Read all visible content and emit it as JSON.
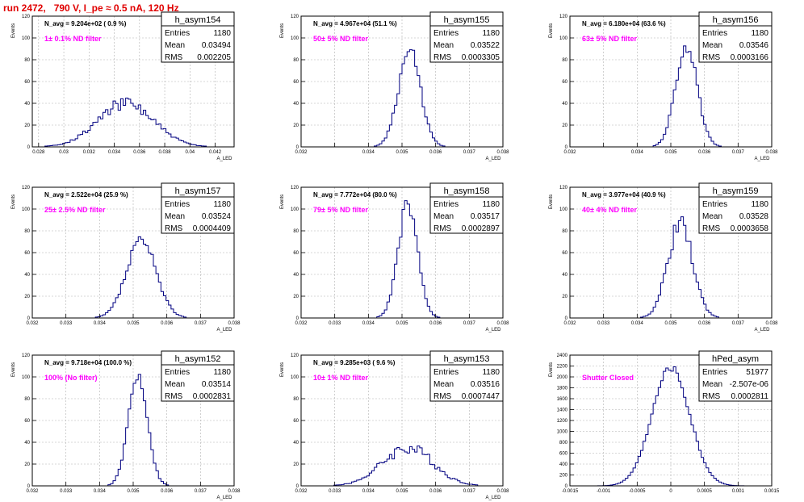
{
  "run_title": "run 2472,   790 V, I_pe ≈ 0.5 nA, 120 Hz",
  "colors": {
    "hist": "#000080",
    "annotation": "#ff00ff",
    "frame": "#000000",
    "grid": "#b0b0b0",
    "title": "#e00000"
  },
  "chart_data": [
    {
      "type": "histogram",
      "name": "h_asym154",
      "stats": {
        "Entries": "1180",
        "Mean": "0.03494",
        "RMS": "0.002205"
      },
      "navg": "N_avg = 9.204e+02 ( 0.9 %)",
      "annotation": "1± 0.1% ND filter",
      "xlim": [
        0.0275,
        0.0435
      ],
      "ylim": [
        0,
        120
      ],
      "xticks": [
        0.028,
        0.03,
        0.032,
        0.034,
        0.036,
        0.038,
        0.04,
        0.042
      ],
      "xtick_labels": [
        "0.028",
        "0.03",
        "0.032",
        "0.034",
        "0.036",
        "0.038",
        "0.04",
        "0.042"
      ],
      "yticks": [
        0,
        20,
        40,
        60,
        80,
        100,
        120
      ],
      "ytick_labels": [
        "0",
        "20",
        "40",
        "60",
        "80",
        "100",
        "120"
      ],
      "ylabel": "Events",
      "xlabel": "A_LED",
      "peak": 0.0349,
      "sigma": 0.0022,
      "peak_height": 40,
      "noise": 0.15,
      "seed": 154
    },
    {
      "type": "histogram",
      "name": "h_asym155",
      "stats": {
        "Entries": "1180",
        "Mean": "0.03522",
        "RMS": "0.0003305"
      },
      "navg": "N_avg = 4.967e+04 (51.1 %)",
      "annotation": "50± 5% ND filter",
      "xlim": [
        0.032,
        0.038
      ],
      "ylim": [
        0,
        120
      ],
      "xticks": [
        0.032,
        0.033,
        0.034,
        0.035,
        0.036,
        0.037,
        0.038
      ],
      "xtick_labels": [
        "0.032",
        "",
        "0.034",
        "0.035",
        "0.036",
        "0.037",
        "0.038"
      ],
      "yticks": [
        0,
        20,
        40,
        60,
        80,
        100,
        120
      ],
      "ytick_labels": [
        "0",
        "20",
        "40",
        "60",
        "80",
        "100",
        "120"
      ],
      "ylabel": "Events",
      "xlabel": "A_LED",
      "peak": 0.03522,
      "sigma": 0.00033,
      "peak_height": 88,
      "noise": 0.08,
      "seed": 155
    },
    {
      "type": "histogram",
      "name": "h_asym156",
      "stats": {
        "Entries": "1180",
        "Mean": "0.03546",
        "RMS": "0.0003166"
      },
      "navg": "N_avg = 6.180e+04 (63.6 %)",
      "annotation": "63± 5% ND filter",
      "xlim": [
        0.032,
        0.038
      ],
      "ylim": [
        0,
        120
      ],
      "xticks": [
        0.032,
        0.033,
        0.034,
        0.035,
        0.036,
        0.037,
        0.038
      ],
      "xtick_labels": [
        "0.032",
        "",
        "0.034",
        "0.035",
        "0.036",
        "0.037",
        "0.038"
      ],
      "yticks": [
        0,
        20,
        40,
        60,
        80,
        100,
        120
      ],
      "ytick_labels": [
        "0",
        "20",
        "40",
        "60",
        "80",
        "100",
        "120"
      ],
      "ylabel": "Events",
      "xlabel": "A_LED",
      "peak": 0.03546,
      "sigma": 0.00032,
      "peak_height": 93,
      "noise": 0.08,
      "seed": 156
    },
    {
      "type": "histogram",
      "name": "h_asym157",
      "stats": {
        "Entries": "1180",
        "Mean": "0.03524",
        "RMS": "0.0004409"
      },
      "navg": "N_avg = 2.522e+04 (25.9 %)",
      "annotation": "25± 2.5% ND filter",
      "xlim": [
        0.032,
        0.038
      ],
      "ylim": [
        0,
        120
      ],
      "xticks": [
        0.032,
        0.033,
        0.034,
        0.035,
        0.036,
        0.037,
        0.038
      ],
      "xtick_labels": [
        "0.032",
        "0.033",
        "0.034",
        "0.035",
        "0.036",
        "0.037",
        "0.038"
      ],
      "yticks": [
        0,
        20,
        40,
        60,
        80,
        100,
        120
      ],
      "ytick_labels": [
        "0",
        "20",
        "40",
        "60",
        "80",
        "100",
        "120"
      ],
      "ylabel": "Events",
      "xlabel": "A_LED",
      "peak": 0.03524,
      "sigma": 0.00044,
      "peak_height": 70,
      "noise": 0.1,
      "seed": 157
    },
    {
      "type": "histogram",
      "name": "h_asym158",
      "stats": {
        "Entries": "1180",
        "Mean": "0.03517",
        "RMS": "0.0002897"
      },
      "navg": "N_avg = 7.772e+04 (80.0 %)",
      "annotation": "79± 5% ND filter",
      "xlim": [
        0.032,
        0.038
      ],
      "ylim": [
        0,
        120
      ],
      "xticks": [
        0.032,
        0.033,
        0.034,
        0.035,
        0.036,
        0.037,
        0.038
      ],
      "xtick_labels": [
        "0.032",
        "0.033",
        "0.034",
        "0.035",
        "0.036",
        "0.037",
        "0.038"
      ],
      "yticks": [
        0,
        20,
        40,
        60,
        80,
        100,
        120
      ],
      "ytick_labels": [
        "0",
        "20",
        "40",
        "60",
        "80",
        "100",
        "120"
      ],
      "ylabel": "Events",
      "xlabel": "A_LED",
      "peak": 0.03517,
      "sigma": 0.00029,
      "peak_height": 104,
      "noise": 0.08,
      "seed": 158
    },
    {
      "type": "histogram",
      "name": "h_asym159",
      "stats": {
        "Entries": "1180",
        "Mean": "0.03528",
        "RMS": "0.0003658"
      },
      "navg": "N_avg = 3.977e+04 (40.9 %)",
      "annotation": "40± 4% ND filter",
      "xlim": [
        0.032,
        0.038
      ],
      "ylim": [
        0,
        120
      ],
      "xticks": [
        0.032,
        0.033,
        0.034,
        0.035,
        0.036,
        0.037,
        0.038
      ],
      "xtick_labels": [
        "0.032",
        "0.033",
        "0.034",
        "0.035",
        "0.036",
        "0.037",
        "0.038"
      ],
      "yticks": [
        0,
        20,
        40,
        60,
        80,
        100,
        120
      ],
      "ytick_labels": [
        "0",
        "20",
        "40",
        "60",
        "80",
        "100",
        "120"
      ],
      "ylabel": "Events",
      "xlabel": "A_LED",
      "peak": 0.03528,
      "sigma": 0.00037,
      "peak_height": 86,
      "noise": 0.1,
      "seed": 159
    },
    {
      "type": "histogram",
      "name": "h_asym152",
      "stats": {
        "Entries": "1180",
        "Mean": "0.03514",
        "RMS": "0.0002831"
      },
      "navg": "N_avg = 9.718e+04 (100.0 %)",
      "annotation": "100% (No filter)",
      "xlim": [
        0.032,
        0.038
      ],
      "ylim": [
        0,
        120
      ],
      "xticks": [
        0.032,
        0.033,
        0.034,
        0.035,
        0.036,
        0.037,
        0.038
      ],
      "xtick_labels": [
        "0.032",
        "0.033",
        "0.034",
        "0.035",
        "0.036",
        "0.037",
        "0.038"
      ],
      "yticks": [
        0,
        20,
        40,
        60,
        80,
        100,
        120
      ],
      "ytick_labels": [
        "0",
        "20",
        "40",
        "60",
        "80",
        "100",
        "120"
      ],
      "ylabel": "Events",
      "xlabel": "A_LED",
      "peak": 0.03514,
      "sigma": 0.00028,
      "peak_height": 105,
      "noise": 0.08,
      "seed": 152
    },
    {
      "type": "histogram",
      "name": "h_asym153",
      "stats": {
        "Entries": "1180",
        "Mean": "0.03516",
        "RMS": "0.0007447"
      },
      "navg": "N_avg = 9.285e+03 ( 9.6 %)",
      "annotation": "10± 1% ND filter",
      "xlim": [
        0.032,
        0.038
      ],
      "ylim": [
        0,
        120
      ],
      "xticks": [
        0.032,
        0.033,
        0.034,
        0.035,
        0.036,
        0.037,
        0.038
      ],
      "xtick_labels": [
        "0.032",
        "0.033",
        "0.034",
        "0.035",
        "0.036",
        "0.037",
        "0.038"
      ],
      "yticks": [
        0,
        20,
        40,
        60,
        80,
        100,
        120
      ],
      "ytick_labels": [
        "0",
        "20",
        "40",
        "60",
        "80",
        "100",
        "120"
      ],
      "ylabel": "Events",
      "xlabel": "A_LED",
      "peak": 0.03516,
      "sigma": 0.00075,
      "peak_height": 35,
      "noise": 0.18,
      "seed": 153
    },
    {
      "type": "histogram",
      "name": "hPed_asym",
      "stats": {
        "Entries": "51977",
        "Mean": "-2.507e-06",
        "RMS": "0.0002811"
      },
      "navg": "",
      "annotation": "Shutter Closed",
      "xlim": [
        -0.0015,
        0.0015
      ],
      "ylim": [
        0,
        2400
      ],
      "xticks": [
        -0.0015,
        -0.001,
        -0.0005,
        0,
        0.0005,
        0.001,
        0.0015
      ],
      "xtick_labels": [
        "-0.0015",
        "-0.001",
        "-0.0005",
        "0",
        "0.0005",
        "0.001",
        "0.0015"
      ],
      "yticks": [
        0,
        200,
        400,
        600,
        800,
        1000,
        1200,
        1400,
        1600,
        1800,
        2000,
        2200,
        2400
      ],
      "ytick_labels": [
        "0",
        "200",
        "400",
        "600",
        "800",
        "1000",
        "1200",
        "1400",
        "1600",
        "1800",
        "2000",
        "2200",
        "2400"
      ],
      "ylabel": "Events",
      "xlabel": "",
      "peak": 0.0,
      "sigma": 0.00028,
      "peak_height": 2170,
      "noise": 0.03,
      "seed": 999
    }
  ]
}
